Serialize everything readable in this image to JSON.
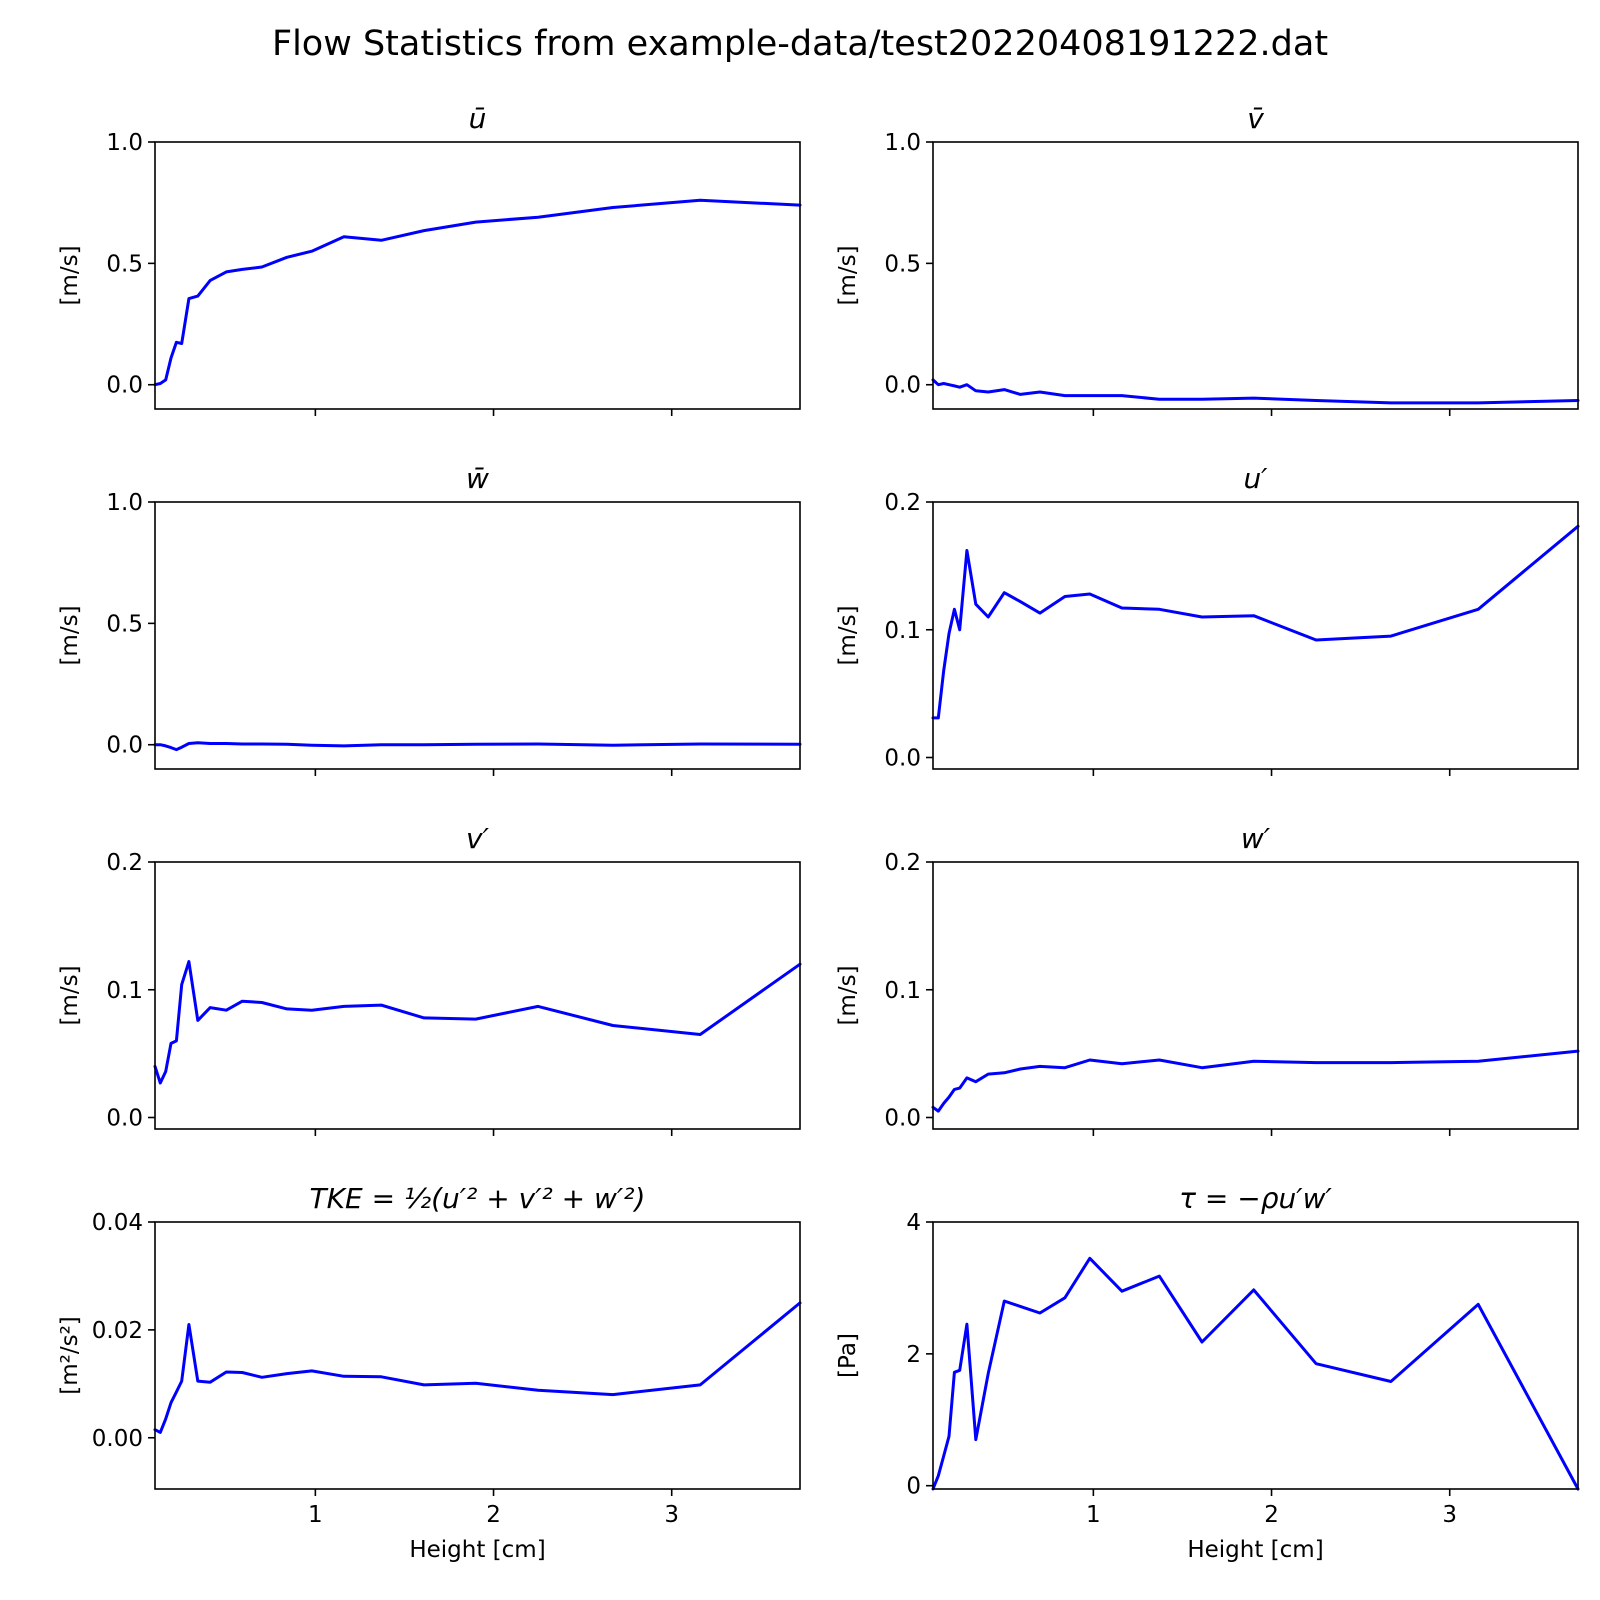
{
  "figure": {
    "suptitle": "Flow Statistics from example-data/test20220408191222.dat"
  },
  "chart_data": [
    {
      "type": "line",
      "title": "ū",
      "xlabel": "",
      "ylabel": "[m/s]",
      "xlim": [
        0.1,
        3.72
      ],
      "ylim": [
        -0.1,
        1.0
      ],
      "yticks": [
        "0.0",
        "0.5",
        "1.0"
      ],
      "xticks": [
        "1",
        "2",
        "3"
      ],
      "x_tick_labels_shown": false,
      "color": "#0000ff",
      "x": [
        0.1,
        0.13,
        0.16,
        0.19,
        0.22,
        0.25,
        0.29,
        0.34,
        0.41,
        0.5,
        0.59,
        0.7,
        0.84,
        0.98,
        1.16,
        1.37,
        1.61,
        1.9,
        2.25,
        2.67,
        3.16,
        3.72
      ],
      "y": [
        0.0,
        0.005,
        0.02,
        0.11,
        0.175,
        0.17,
        0.355,
        0.365,
        0.43,
        0.465,
        0.475,
        0.485,
        0.525,
        0.55,
        0.61,
        0.595,
        0.635,
        0.67,
        0.69,
        0.73,
        0.76,
        0.74
      ]
    },
    {
      "type": "line",
      "title": "v̄",
      "xlabel": "",
      "ylabel": "[m/s]",
      "xlim": [
        0.1,
        3.72
      ],
      "ylim": [
        -0.1,
        1.0
      ],
      "yticks": [
        "0.0",
        "0.5",
        "1.0"
      ],
      "xticks": [
        "1",
        "2",
        "3"
      ],
      "x_tick_labels_shown": false,
      "color": "#0000ff",
      "x": [
        0.1,
        0.13,
        0.16,
        0.19,
        0.22,
        0.25,
        0.29,
        0.34,
        0.41,
        0.5,
        0.59,
        0.7,
        0.84,
        0.98,
        1.16,
        1.37,
        1.61,
        1.9,
        2.25,
        2.67,
        3.16,
        3.72
      ],
      "y": [
        0.02,
        0.0,
        0.005,
        0.0,
        -0.005,
        -0.01,
        0.0,
        -0.025,
        -0.03,
        -0.02,
        -0.04,
        -0.03,
        -0.045,
        -0.045,
        -0.045,
        -0.06,
        -0.06,
        -0.055,
        -0.065,
        -0.075,
        -0.075,
        -0.065
      ]
    },
    {
      "type": "line",
      "title": "w̄",
      "xlabel": "",
      "ylabel": "[m/s]",
      "xlim": [
        0.1,
        3.72
      ],
      "ylim": [
        -0.1,
        1.0
      ],
      "yticks": [
        "0.0",
        "0.5",
        "1.0"
      ],
      "xticks": [
        "1",
        "2",
        "3"
      ],
      "x_tick_labels_shown": false,
      "color": "#0000ff",
      "x": [
        0.1,
        0.13,
        0.16,
        0.19,
        0.22,
        0.25,
        0.29,
        0.34,
        0.41,
        0.5,
        0.59,
        0.7,
        0.84,
        0.98,
        1.16,
        1.37,
        1.61,
        1.9,
        2.25,
        2.67,
        3.16,
        3.72
      ],
      "y": [
        0.0,
        0.0,
        -0.005,
        -0.012,
        -0.02,
        -0.01,
        0.005,
        0.008,
        0.005,
        0.005,
        0.003,
        0.003,
        0.002,
        -0.002,
        -0.005,
        0.0,
        0.0,
        0.002,
        0.003,
        -0.002,
        0.003,
        0.002
      ]
    },
    {
      "type": "line",
      "title": "u′",
      "xlabel": "",
      "ylabel": "[m/s]",
      "xlim": [
        0.1,
        3.72
      ],
      "ylim": [
        -0.009,
        0.2
      ],
      "yticks": [
        "0.0",
        "0.1",
        "0.2"
      ],
      "xticks": [
        "1",
        "2",
        "3"
      ],
      "x_tick_labels_shown": false,
      "color": "#0000ff",
      "x": [
        0.1,
        0.13,
        0.16,
        0.19,
        0.22,
        0.25,
        0.29,
        0.34,
        0.41,
        0.5,
        0.59,
        0.7,
        0.84,
        0.98,
        1.16,
        1.37,
        1.61,
        1.9,
        2.25,
        2.67,
        3.16,
        3.72
      ],
      "y": [
        0.031,
        0.031,
        0.068,
        0.097,
        0.116,
        0.1,
        0.162,
        0.12,
        0.11,
        0.129,
        0.122,
        0.113,
        0.126,
        0.128,
        0.117,
        0.116,
        0.11,
        0.111,
        0.092,
        0.095,
        0.116,
        0.181
      ]
    },
    {
      "type": "line",
      "title": "v′",
      "xlabel": "",
      "ylabel": "[m/s]",
      "xlim": [
        0.1,
        3.72
      ],
      "ylim": [
        -0.009,
        0.2
      ],
      "yticks": [
        "0.0",
        "0.1",
        "0.2"
      ],
      "xticks": [
        "1",
        "2",
        "3"
      ],
      "x_tick_labels_shown": false,
      "color": "#0000ff",
      "x": [
        0.1,
        0.13,
        0.16,
        0.19,
        0.22,
        0.25,
        0.29,
        0.34,
        0.41,
        0.5,
        0.59,
        0.7,
        0.84,
        0.98,
        1.16,
        1.37,
        1.61,
        1.9,
        2.25,
        2.67,
        3.16,
        3.72
      ],
      "y": [
        0.04,
        0.027,
        0.036,
        0.058,
        0.06,
        0.104,
        0.122,
        0.076,
        0.086,
        0.084,
        0.091,
        0.09,
        0.085,
        0.084,
        0.087,
        0.088,
        0.078,
        0.077,
        0.087,
        0.072,
        0.065,
        0.12
      ]
    },
    {
      "type": "line",
      "title": "w′",
      "xlabel": "",
      "ylabel": "[m/s]",
      "xlim": [
        0.1,
        3.72
      ],
      "ylim": [
        -0.009,
        0.2
      ],
      "yticks": [
        "0.0",
        "0.1",
        "0.2"
      ],
      "xticks": [
        "1",
        "2",
        "3"
      ],
      "x_tick_labels_shown": false,
      "color": "#0000ff",
      "x": [
        0.1,
        0.13,
        0.16,
        0.19,
        0.22,
        0.25,
        0.29,
        0.34,
        0.41,
        0.5,
        0.59,
        0.7,
        0.84,
        0.98,
        1.16,
        1.37,
        1.61,
        1.9,
        2.25,
        2.67,
        3.16,
        3.72
      ],
      "y": [
        0.008,
        0.005,
        0.011,
        0.016,
        0.022,
        0.023,
        0.031,
        0.028,
        0.034,
        0.035,
        0.038,
        0.04,
        0.039,
        0.045,
        0.042,
        0.045,
        0.039,
        0.044,
        0.043,
        0.043,
        0.044,
        0.052
      ]
    },
    {
      "type": "line",
      "title": "TKE = ½(u′² + v′² + w′²)",
      "xlabel": "Height [cm]",
      "ylabel": "[m²/s²]",
      "xlim": [
        0.1,
        3.72
      ],
      "ylim": [
        -0.0095,
        0.04
      ],
      "yticks": [
        "0.00",
        "0.02",
        "0.04"
      ],
      "xticks": [
        "1",
        "2",
        "3"
      ],
      "x_tick_labels_shown": true,
      "color": "#0000ff",
      "x": [
        0.1,
        0.13,
        0.16,
        0.19,
        0.22,
        0.25,
        0.29,
        0.34,
        0.41,
        0.5,
        0.59,
        0.7,
        0.84,
        0.98,
        1.16,
        1.37,
        1.61,
        1.9,
        2.25,
        2.67,
        3.16,
        3.72
      ],
      "y": [
        0.0015,
        0.001,
        0.0035,
        0.0065,
        0.0085,
        0.0105,
        0.021,
        0.0105,
        0.0103,
        0.0122,
        0.0121,
        0.0112,
        0.0119,
        0.0124,
        0.0114,
        0.0113,
        0.0098,
        0.0101,
        0.0088,
        0.008,
        0.0098,
        0.025
      ]
    },
    {
      "type": "line",
      "title": "τ = −ρu′w′",
      "xlabel": "Height [cm]",
      "ylabel": "[Pa]",
      "xlim": [
        0.1,
        3.72
      ],
      "ylim": [
        -0.05,
        4.0
      ],
      "yticks": [
        "0",
        "2",
        "4"
      ],
      "xticks": [
        "1",
        "2",
        "3"
      ],
      "x_tick_labels_shown": true,
      "color": "#0000ff",
      "x": [
        0.1,
        0.13,
        0.16,
        0.19,
        0.22,
        0.25,
        0.29,
        0.34,
        0.41,
        0.5,
        0.59,
        0.7,
        0.84,
        0.98,
        1.16,
        1.37,
        1.61,
        1.9,
        2.25,
        2.67,
        3.16,
        3.72
      ],
      "y": [
        -0.05,
        0.15,
        0.45,
        0.75,
        1.72,
        1.75,
        2.45,
        0.7,
        1.7,
        2.8,
        2.72,
        2.62,
        2.85,
        3.45,
        2.95,
        3.18,
        2.18,
        2.97,
        1.85,
        1.58,
        2.75,
        -0.05
      ]
    }
  ]
}
